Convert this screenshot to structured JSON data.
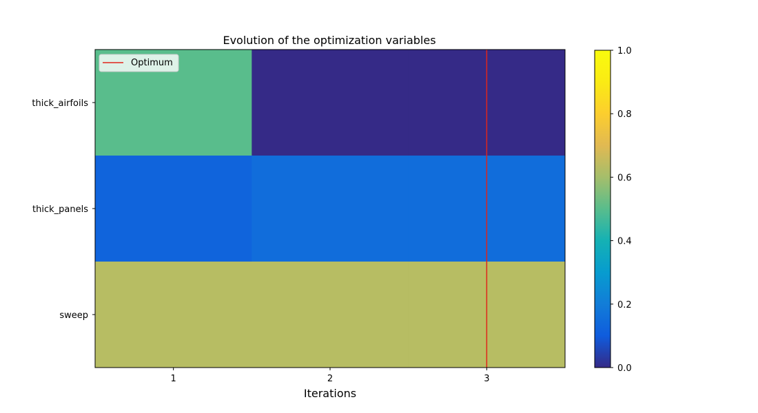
{
  "chart_data": {
    "type": "heatmap",
    "title": "Evolution of the optimization variables",
    "xlabel": "Iterations",
    "ylabel": "",
    "x": [
      1,
      2,
      3
    ],
    "y_categories": [
      "thick_airfoils",
      "thick_panels",
      "sweep"
    ],
    "values": [
      [
        0.5,
        0.0,
        0.0
      ],
      [
        0.125,
        0.15,
        0.15
      ],
      [
        0.63,
        0.63,
        0.63
      ]
    ],
    "optimum": {
      "label": "Optimum",
      "x": 3,
      "color": "#e0241b"
    },
    "legend_position": "top-left",
    "colorbar": {
      "range": [
        0,
        1
      ],
      "ticks": [
        "0.0",
        "0.2",
        "0.4",
        "0.6",
        "0.8",
        "1.0"
      ],
      "colormap": "parula"
    }
  }
}
